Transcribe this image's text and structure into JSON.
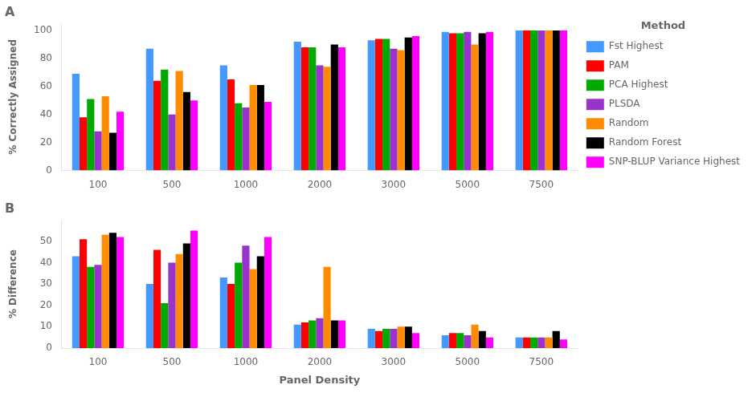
{
  "chart_data": [
    {
      "type": "bar",
      "title": "A",
      "categories": [
        "100",
        "500",
        "1000",
        "2000",
        "3000",
        "5000",
        "7500"
      ],
      "series": [
        {
          "name": "Fst Highest",
          "color": "#4499FF",
          "values": [
            69,
            87,
            75,
            92,
            93,
            99,
            100
          ]
        },
        {
          "name": "PAM",
          "color": "#FF0000",
          "values": [
            38,
            64,
            65,
            88,
            94,
            98,
            100
          ]
        },
        {
          "name": "PCA Highest",
          "color": "#00AA00",
          "values": [
            51,
            72,
            48,
            88,
            94,
            98,
            100
          ]
        },
        {
          "name": "PLSDA",
          "color": "#9933CC",
          "values": [
            28,
            40,
            45,
            75,
            87,
            99,
            100
          ]
        },
        {
          "name": "Random",
          "color": "#FF8C00",
          "values": [
            53,
            71,
            61,
            74,
            86,
            90,
            100
          ]
        },
        {
          "name": "Random Forest",
          "color": "#000000",
          "values": [
            27,
            56,
            61,
            90,
            95,
            98,
            100
          ]
        },
        {
          "name": "SNP-BLUP Variance Highest",
          "color": "#FF00FF",
          "values": [
            42,
            50,
            49,
            88,
            96,
            99,
            100
          ]
        }
      ],
      "ylabel": "% Correctly Assigned",
      "ylim": [
        0,
        105
      ],
      "yticks": [
        0,
        20,
        40,
        60,
        80,
        100
      ],
      "grid": false,
      "legend": "right",
      "legend_title": "Method"
    },
    {
      "type": "bar",
      "title": "B",
      "categories": [
        "100",
        "500",
        "1000",
        "2000",
        "3000",
        "5000",
        "7500"
      ],
      "series": [
        {
          "name": "Fst Highest",
          "color": "#4499FF",
          "values": [
            43,
            30,
            33,
            11,
            9,
            6,
            5
          ]
        },
        {
          "name": "PAM",
          "color": "#FF0000",
          "values": [
            51,
            46,
            30,
            12,
            8,
            7,
            5
          ]
        },
        {
          "name": "PCA Highest",
          "color": "#00AA00",
          "values": [
            38,
            21,
            40,
            13,
            9,
            7,
            5
          ]
        },
        {
          "name": "PLSDA",
          "color": "#9933CC",
          "values": [
            39,
            40,
            48,
            14,
            9,
            6,
            5
          ]
        },
        {
          "name": "Random",
          "color": "#FF8C00",
          "values": [
            53,
            44,
            37,
            38,
            10,
            11,
            5
          ]
        },
        {
          "name": "Random Forest",
          "color": "#000000",
          "values": [
            54,
            49,
            43,
            13,
            10,
            8,
            8
          ]
        },
        {
          "name": "SNP-BLUP Variance Highest",
          "color": "#FF00FF",
          "values": [
            52,
            55,
            52,
            13,
            7,
            5,
            4
          ]
        }
      ],
      "xlabel": "Panel Density",
      "ylabel": "% Difference",
      "ylim": [
        0,
        60
      ],
      "yticks": [
        0,
        10,
        20,
        30,
        40,
        50
      ],
      "grid": false
    }
  ]
}
